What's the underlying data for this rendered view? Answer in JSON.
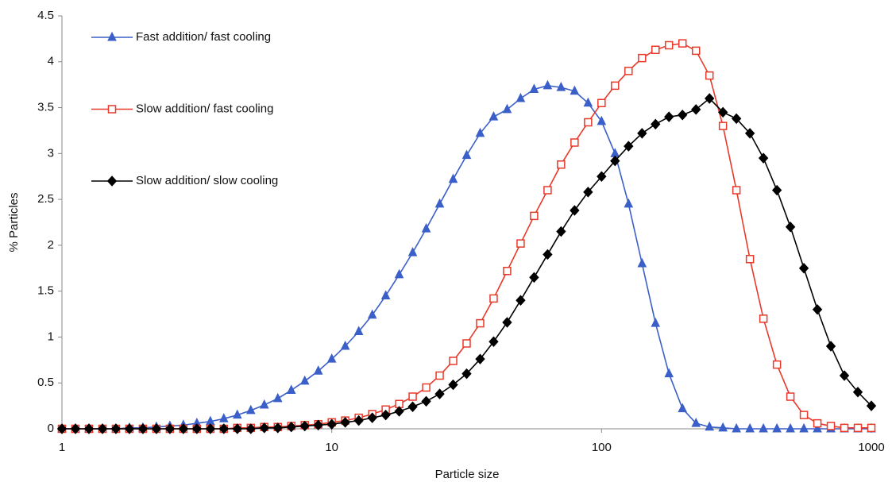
{
  "chart_data": {
    "type": "line",
    "xlabel": "Particle size",
    "ylabel": "% Particles",
    "xscale": "log",
    "xlim": [
      1,
      1000
    ],
    "xticks": [
      1,
      10,
      100,
      1000
    ],
    "ylim": [
      0,
      4.5
    ],
    "yticks": [
      0,
      0.5,
      1,
      1.5,
      2,
      2.5,
      3,
      3.5,
      4,
      4.5
    ],
    "grid": false,
    "legend": "upper left",
    "x": [
      1,
      1.122,
      1.259,
      1.413,
      1.585,
      1.778,
      1.995,
      2.239,
      2.512,
      2.818,
      3.162,
      3.548,
      3.981,
      4.467,
      5.012,
      5.623,
      6.31,
      7.079,
      7.943,
      8.913,
      10,
      11.22,
      12.59,
      14.13,
      15.85,
      17.78,
      19.95,
      22.39,
      25.12,
      28.18,
      31.62,
      35.48,
      39.81,
      44.67,
      50.12,
      56.23,
      63.1,
      70.79,
      79.43,
      89.13,
      100,
      112.2,
      125.9,
      141.3,
      158.5,
      177.8,
      199.5,
      223.9,
      251.2,
      281.8,
      316.2,
      354.8,
      398.1,
      446.7,
      501.2,
      562.3,
      631,
      707.9,
      794.3,
      891.3,
      1000
    ],
    "series": [
      {
        "name": "Fast addition/ fast cooling",
        "color": "#3b5fc8",
        "marker": "triangle",
        "values": [
          0,
          0,
          0,
          0,
          0,
          0.01,
          0.01,
          0.02,
          0.03,
          0.04,
          0.06,
          0.08,
          0.11,
          0.15,
          0.2,
          0.26,
          0.33,
          0.42,
          0.52,
          0.63,
          0.76,
          0.9,
          1.06,
          1.24,
          1.45,
          1.68,
          1.92,
          2.18,
          2.45,
          2.72,
          2.98,
          3.22,
          3.4,
          3.48,
          3.6,
          3.7,
          3.74,
          3.72,
          3.68,
          3.55,
          3.35,
          3.0,
          2.45,
          1.8,
          1.15,
          0.6,
          0.22,
          0.06,
          0.02,
          0.01,
          0,
          0,
          0,
          0,
          0,
          0,
          0,
          0,
          0,
          0,
          0
        ]
      },
      {
        "name": "Slow addition/ fast cooling",
        "color": "#e8392b",
        "marker": "square-open",
        "values": [
          0,
          0,
          0,
          0,
          0,
          0,
          0,
          0,
          0,
          0,
          0,
          0,
          0,
          0.01,
          0.01,
          0.02,
          0.02,
          0.03,
          0.04,
          0.05,
          0.07,
          0.09,
          0.12,
          0.16,
          0.21,
          0.27,
          0.35,
          0.45,
          0.58,
          0.74,
          0.93,
          1.15,
          1.42,
          1.72,
          2.02,
          2.32,
          2.6,
          2.88,
          3.12,
          3.34,
          3.55,
          3.74,
          3.9,
          4.04,
          4.13,
          4.18,
          4.2,
          4.12,
          3.85,
          3.3,
          2.6,
          1.85,
          1.2,
          0.7,
          0.35,
          0.15,
          0.06,
          0.03,
          0.01,
          0.01,
          0.01
        ]
      },
      {
        "name": "Slow addition/ slow cooling",
        "color": "#000000",
        "marker": "diamond",
        "values": [
          0,
          0,
          0,
          0,
          0,
          0,
          0,
          0,
          0,
          0,
          0,
          0,
          0,
          0,
          0,
          0.01,
          0.01,
          0.02,
          0.03,
          0.04,
          0.05,
          0.07,
          0.09,
          0.12,
          0.15,
          0.19,
          0.24,
          0.3,
          0.38,
          0.48,
          0.6,
          0.76,
          0.95,
          1.16,
          1.4,
          1.65,
          1.9,
          2.15,
          2.38,
          2.58,
          2.75,
          2.92,
          3.08,
          3.22,
          3.32,
          3.4,
          3.42,
          3.48,
          3.6,
          3.45,
          3.38,
          3.22,
          2.95,
          2.6,
          2.2,
          1.75,
          1.3,
          0.9,
          0.58,
          0.4,
          0.25
        ]
      }
    ]
  }
}
